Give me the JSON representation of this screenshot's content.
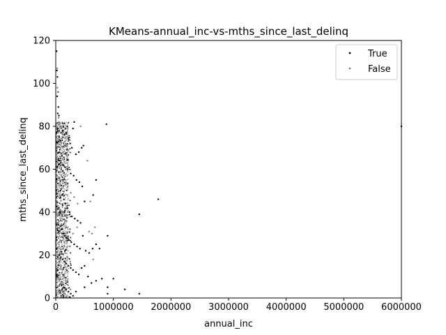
{
  "chart_data": {
    "type": "scatter",
    "title": "KMeans-annual_inc-vs-mths_since_last_delinq",
    "xlabel": "annual_inc",
    "ylabel": "mths_since_last_delinq",
    "xlim": [
      0,
      6000000
    ],
    "ylim": [
      0,
      120
    ],
    "x_ticks": [
      0,
      1000000,
      2000000,
      3000000,
      4000000,
      5000000,
      6000000
    ],
    "x_tick_labels": [
      "0",
      "1000000",
      "2000000",
      "3000000",
      "4000000",
      "5000000",
      "6000000"
    ],
    "y_ticks": [
      0,
      20,
      40,
      60,
      80,
      100,
      120
    ],
    "y_tick_labels": [
      "0",
      "20",
      "40",
      "60",
      "80",
      "100",
      "120"
    ],
    "grid": false,
    "legend_position": "top-right",
    "legend": [
      "True",
      "False"
    ],
    "series": [
      {
        "name": "True",
        "color": "#000000",
        "points": [
          [
            15000,
            115
          ],
          [
            20000,
            106
          ],
          [
            30000,
            103
          ],
          [
            40000,
            96
          ],
          [
            25000,
            94
          ],
          [
            45000,
            89
          ],
          [
            35000,
            86
          ],
          [
            55000,
            85
          ],
          [
            60000,
            81
          ],
          [
            80000,
            80
          ],
          [
            100000,
            79
          ],
          [
            120000,
            78
          ],
          [
            150000,
            76
          ],
          [
            180000,
            77
          ],
          [
            200000,
            80
          ],
          [
            220000,
            74
          ],
          [
            250000,
            72
          ],
          [
            280000,
            70
          ],
          [
            300000,
            79
          ],
          [
            320000,
            82
          ],
          [
            350000,
            67
          ],
          [
            400000,
            68
          ],
          [
            450000,
            70
          ],
          [
            480000,
            71
          ],
          [
            880000,
            81
          ],
          [
            60000,
            64
          ],
          [
            90000,
            63
          ],
          [
            130000,
            62
          ],
          [
            160000,
            61
          ],
          [
            210000,
            60
          ],
          [
            260000,
            58
          ],
          [
            310000,
            57
          ],
          [
            360000,
            55
          ],
          [
            410000,
            54
          ],
          [
            460000,
            52
          ],
          [
            500000,
            45
          ],
          [
            700000,
            55
          ],
          [
            650000,
            48
          ],
          [
            80000,
            50
          ],
          [
            110000,
            48
          ],
          [
            140000,
            46
          ],
          [
            170000,
            44
          ],
          [
            200000,
            42
          ],
          [
            240000,
            40
          ],
          [
            280000,
            38
          ],
          [
            330000,
            37
          ],
          [
            380000,
            36
          ],
          [
            430000,
            35
          ],
          [
            1450000,
            39
          ],
          [
            1780000,
            46
          ],
          [
            70000,
            33
          ],
          [
            100000,
            32
          ],
          [
            130000,
            30
          ],
          [
            160000,
            29
          ],
          [
            190000,
            28
          ],
          [
            230000,
            27
          ],
          [
            270000,
            26
          ],
          [
            320000,
            25
          ],
          [
            370000,
            24
          ],
          [
            420000,
            23
          ],
          [
            470000,
            29
          ],
          [
            520000,
            22
          ],
          [
            580000,
            21
          ],
          [
            640000,
            23
          ],
          [
            700000,
            25
          ],
          [
            760000,
            23
          ],
          [
            900000,
            29
          ],
          [
            60000,
            20
          ],
          [
            90000,
            19
          ],
          [
            120000,
            18
          ],
          [
            150000,
            17
          ],
          [
            180000,
            16
          ],
          [
            220000,
            15
          ],
          [
            260000,
            14
          ],
          [
            300000,
            13
          ],
          [
            350000,
            12
          ],
          [
            400000,
            11
          ],
          [
            450000,
            14
          ],
          [
            500000,
            15
          ],
          [
            560000,
            10
          ],
          [
            620000,
            7
          ],
          [
            700000,
            8
          ],
          [
            800000,
            9
          ],
          [
            900000,
            5
          ],
          [
            1000000,
            9
          ],
          [
            1200000,
            4
          ],
          [
            900000,
            2
          ],
          [
            1450000,
            2
          ],
          [
            60000,
            8
          ],
          [
            100000,
            6
          ],
          [
            140000,
            5
          ],
          [
            180000,
            4
          ],
          [
            220000,
            3
          ],
          [
            260000,
            2
          ],
          [
            300000,
            1
          ],
          [
            350000,
            3
          ],
          [
            500000,
            5
          ],
          [
            6000000,
            80
          ]
        ]
      },
      {
        "name": "False",
        "color": "#808080",
        "points": [
          [
            25000,
            107
          ],
          [
            30000,
            98
          ],
          [
            45000,
            96
          ],
          [
            50000,
            84
          ],
          [
            55000,
            82
          ],
          [
            65000,
            81
          ],
          [
            75000,
            80
          ],
          [
            95000,
            79
          ],
          [
            115000,
            77
          ],
          [
            135000,
            75
          ],
          [
            160000,
            73
          ],
          [
            190000,
            71
          ],
          [
            220000,
            69
          ],
          [
            430000,
            80
          ],
          [
            550000,
            64
          ],
          [
            70000,
            66
          ],
          [
            100000,
            62
          ],
          [
            130000,
            58
          ],
          [
            170000,
            55
          ],
          [
            210000,
            52
          ],
          [
            260000,
            49
          ],
          [
            320000,
            47
          ],
          [
            380000,
            44
          ],
          [
            600000,
            45
          ],
          [
            85000,
            41
          ],
          [
            115000,
            38
          ],
          [
            150000,
            35
          ],
          [
            190000,
            33
          ],
          [
            240000,
            31
          ],
          [
            300000,
            30
          ],
          [
            370000,
            33
          ],
          [
            580000,
            31
          ],
          [
            630000,
            30
          ],
          [
            680000,
            33
          ],
          [
            95000,
            26
          ],
          [
            125000,
            23
          ],
          [
            160000,
            21
          ],
          [
            200000,
            19
          ],
          [
            250000,
            17
          ],
          [
            650000,
            18
          ],
          [
            110000,
            12
          ],
          [
            140000,
            10
          ],
          [
            175000,
            8
          ],
          [
            215000,
            6
          ],
          [
            255000,
            4
          ],
          [
            70000,
            3
          ],
          [
            120000,
            1
          ],
          [
            160000,
            2
          ]
        ]
      }
    ],
    "dense_band": {
      "series": "False",
      "x_range": [
        0,
        220000
      ],
      "y_range": [
        0,
        82
      ]
    }
  }
}
